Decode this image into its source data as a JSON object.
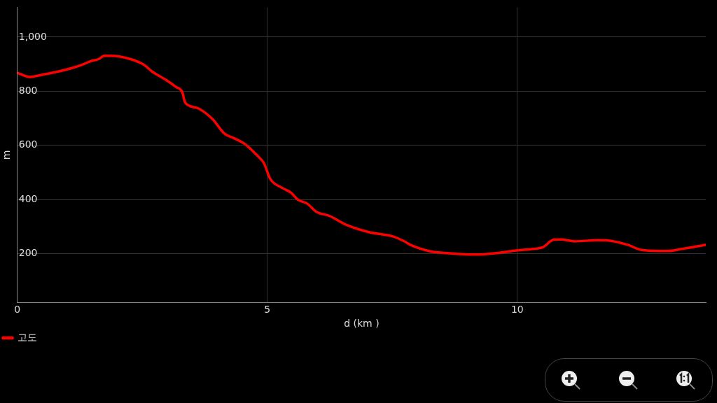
{
  "chart_data": {
    "type": "line",
    "xlabel": "d (km )",
    "ylabel": "m",
    "x": [
      0,
      0.24,
      0.47,
      0.8,
      1.08,
      1.31,
      1.45,
      1.64,
      1.73,
      1.87,
      2.24,
      2.52,
      2.7,
      2.98,
      3.17,
      3.3,
      3.35,
      3.42,
      3.63,
      3.91,
      4.14,
      4.33,
      4.56,
      4.79,
      4.93,
      5.06,
      5.3,
      5.47,
      5.61,
      5.8,
      5.98,
      6.24,
      6.58,
      7.03,
      7.53,
      7.75,
      7.86,
      8.26,
      8.64,
      9.15,
      9.65,
      9.98,
      10.32,
      10.51,
      10.73,
      10.87,
      11.15,
      11.6,
      11.82,
      12.21,
      12.49,
      12.99,
      13.32,
      13.77
    ],
    "series": [
      {
        "name": "고도",
        "color": "#ff0000",
        "values": [
          868,
          853,
          860,
          872,
          885,
          899,
          910,
          920,
          931,
          931,
          920,
          899,
          872,
          841,
          816,
          796,
          761,
          748,
          736,
          696,
          644,
          627,
          604,
          564,
          535,
          476,
          443,
          426,
          400,
          385,
          355,
          340,
          307,
          280,
          263,
          245,
          233,
          209,
          202,
          197,
          204,
          212,
          218,
          224,
          252,
          253,
          246,
          250,
          249,
          233,
          214,
          210,
          219,
          233
        ]
      }
    ],
    "xlim": [
      0,
      13.77
    ],
    "ylim": [
      20,
      1110
    ],
    "xticks": [
      0,
      5,
      10
    ],
    "yticks": [
      200,
      400,
      600,
      800,
      {
        "value": 1000,
        "label": "1,000"
      }
    ],
    "grid": true,
    "legend": "bottom left",
    "marker": "none",
    "line_style": "solid"
  }
}
